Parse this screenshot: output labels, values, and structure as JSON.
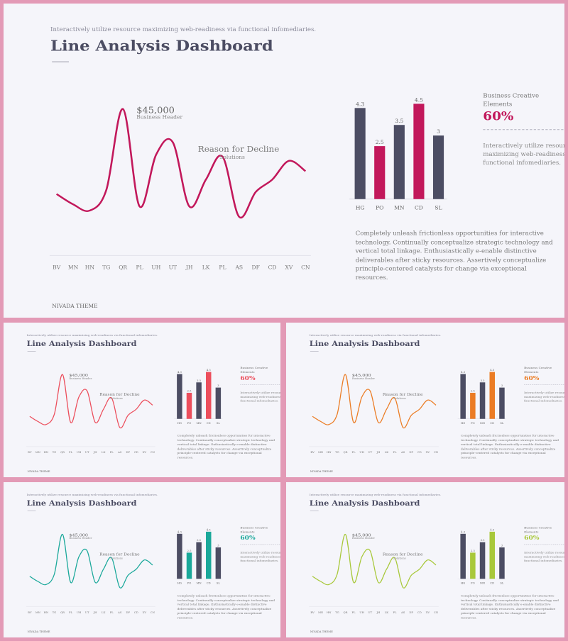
{
  "slides": [
    {
      "accent": "#c2185b",
      "page": "1"
    },
    {
      "accent": "#ec4e5c",
      "page": "2"
    },
    {
      "accent": "#eb7c24",
      "page": "3"
    },
    {
      "accent": "#1aa89a",
      "page": "4"
    },
    {
      "accent": "#a8c83a",
      "page": "5"
    }
  ],
  "text": {
    "subtitle": "Interactively utilize resource maximizing web-readiness via functional infomediaries.",
    "title": "Line Analysis Dashboard",
    "peak_value": "$45,000",
    "peak_label": "Business Header",
    "reason_title": "Reason for Decline",
    "reason_sub": "Solutions",
    "side_heading": "Business Creative Elements",
    "side_pct": "60%",
    "side_body": "Interactively utilize resource maximizing web-readiness via functional infomediaries.",
    "paragraph": "Completely unleash frictionless opportunities for interactive technology. Continually conceptualize strategic technology and vertical total linkage. Enthusiastically e-enable distinctive deliverables after sticky resources. Assertively conceptualize principle-centered catalysts for change via exceptional resources.",
    "footer": "NIVADA THEME"
  },
  "chart_data": [
    {
      "type": "line",
      "categories": [
        "BV",
        "MN",
        "HN",
        "TG",
        "QR",
        "PL",
        "UH",
        "UT",
        "JH",
        "LK",
        "PL",
        "AS",
        "DF",
        "CD",
        "XV",
        "CN"
      ],
      "values": [
        2.9,
        2.4,
        2.1,
        3.1,
        7.0,
        2.3,
        4.8,
        5.4,
        2.3,
        3.6,
        4.7,
        1.8,
        3.0,
        3.6,
        4.5,
        4.0
      ],
      "ylim": [
        0,
        8
      ]
    },
    {
      "type": "bar",
      "categories": [
        "HG",
        "PO",
        "MN",
        "CD",
        "SL"
      ],
      "values": [
        4.3,
        2.5,
        3.5,
        4.5,
        3
      ],
      "value_labels": [
        "4.3",
        "2.5",
        "3.5",
        "4.5",
        "3"
      ],
      "highlight": [
        1,
        3
      ],
      "ylim": [
        0,
        4.5
      ]
    }
  ]
}
